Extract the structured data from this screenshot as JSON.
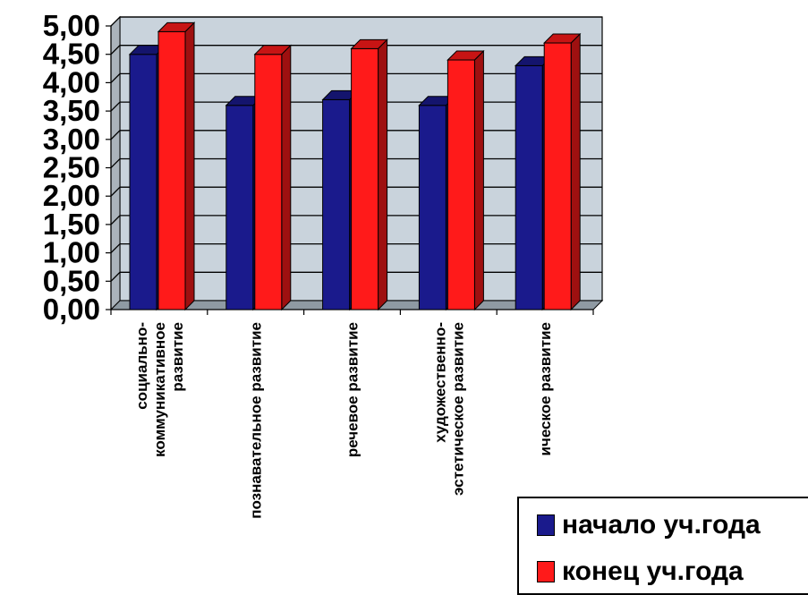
{
  "chart_data": {
    "type": "bar",
    "categories": [
      [
        "социально-",
        "коммуникативное",
        "развитие"
      ],
      [
        "познавательное развитие"
      ],
      [
        "речевое развитие"
      ],
      [
        "художественно-",
        "эстетическое развитие"
      ],
      [
        "ическое развитие"
      ]
    ],
    "series": [
      {
        "name": "начало уч.года",
        "values": [
          4.5,
          3.6,
          3.7,
          3.6,
          4.3
        ],
        "color": "#1a1a8c"
      },
      {
        "name": "конец уч.года",
        "values": [
          4.9,
          4.5,
          4.6,
          4.4,
          4.7
        ],
        "color": "#ff1a1a"
      }
    ],
    "ylim": [
      0,
      5
    ],
    "ytick_step": 0.5,
    "ytick_labels": [
      "0,00",
      "0,50",
      "1,00",
      "1,50",
      "2,00",
      "2,50",
      "3,00",
      "3,50",
      "4,00",
      "4,50",
      "5,00"
    ],
    "grid": true,
    "legend_position": "bottom-right",
    "wall_color": "#c9d3dc",
    "floor_color": "#8f9aa3"
  }
}
